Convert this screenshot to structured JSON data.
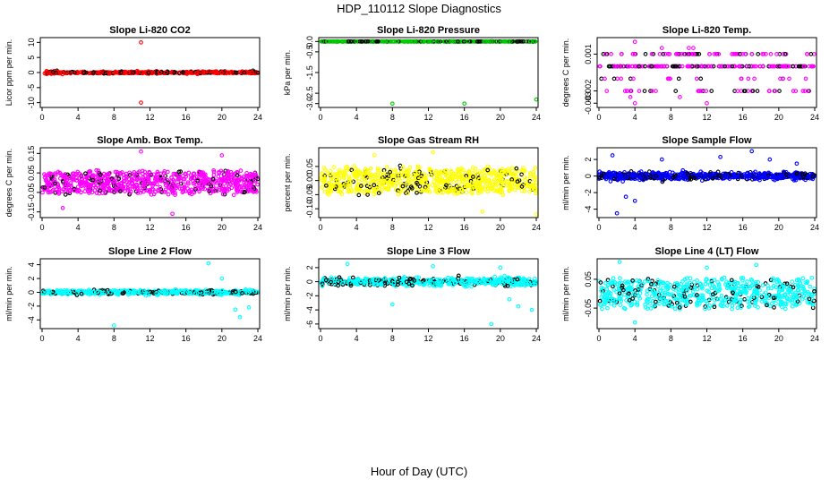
{
  "figure": {
    "title": "HDP_110112  Slope Diagnostics",
    "common_xlabel": "Hour of Day (UTC)"
  },
  "colors": {
    "red": "#ff0000",
    "green": "#00cc00",
    "magenta": "#ff00ff",
    "yellow": "#ffff00",
    "blue": "#0000ff",
    "cyan": "#00ffff",
    "black": "#000000"
  },
  "chart_data": [
    {
      "type": "scatter",
      "title": "Slope Li-820 CO2",
      "ylabel": "Licor ppm per min.",
      "xlim": [
        0,
        24
      ],
      "xticks": [
        "0",
        "4",
        "8",
        "12",
        "16",
        "20",
        "24"
      ],
      "ylim": [
        -11,
        11
      ],
      "yticks": [
        "-10",
        "-5",
        "0",
        "5",
        "10"
      ],
      "ytick_values": [
        -10,
        -5,
        0,
        5,
        10
      ],
      "color": "red",
      "seed": 11,
      "n": 480,
      "frac_black": 0.3,
      "spread": 0.35,
      "dist": "gauss",
      "outliers": [
        [
          11,
          10
        ],
        [
          11,
          -10
        ],
        [
          0.5,
          0.5
        ]
      ]
    },
    {
      "type": "scatter",
      "title": "Slope Li-820 Pressure",
      "ylabel": "kPa per min.",
      "xlim": [
        0,
        24
      ],
      "xticks": [
        "0",
        "4",
        "8",
        "12",
        "16",
        "20",
        "24"
      ],
      "ylim": [
        -3.1,
        0.1
      ],
      "yticks": [
        "0.0",
        "-0.5",
        "-1.5",
        "-2.5",
        "-3.0"
      ],
      "ytick_values": [
        0,
        -0.5,
        -1.5,
        -2.5,
        -3.0
      ],
      "color": "green",
      "seed": 23,
      "n": 400,
      "frac_black": 0.4,
      "spread": 0.005,
      "dist": "gauss",
      "outliers": [
        [
          8,
          -3.0
        ],
        [
          16,
          -3.0
        ],
        [
          24,
          -2.8
        ],
        [
          0.2,
          0
        ]
      ]
    },
    {
      "type": "scatter",
      "title": "Slope Li-820 Temp.",
      "ylabel": "degrees C per min.",
      "xlim": [
        0,
        24
      ],
      "xticks": [
        "0",
        "4",
        "8",
        "12",
        "16",
        "20",
        "24"
      ],
      "ylim": [
        -0.0032,
        0.0022
      ],
      "yticks": [
        "0.001",
        "-0.002",
        "-0.003"
      ],
      "ytick_values": [
        0.001,
        -0.002,
        -0.003
      ],
      "color": "magenta",
      "seed": 37,
      "n": 330,
      "frac_black": 0.35,
      "dist": "levels",
      "levels": [
        0.001,
        0.0,
        -0.001,
        -0.002
      ],
      "level_weights": [
        0.22,
        0.58,
        0.08,
        0.12
      ],
      "outliers": [
        [
          4,
          0.002
        ],
        [
          7,
          0.0015
        ],
        [
          10,
          0.0015
        ],
        [
          10.5,
          0.0015
        ],
        [
          4,
          -0.003
        ],
        [
          12,
          -0.003
        ],
        [
          3.5,
          -0.0025
        ],
        [
          9,
          -0.0025
        ]
      ]
    },
    {
      "type": "scatter",
      "title": "Slope Amb. Box Temp.",
      "ylabel": "degrees C per min.",
      "xlim": [
        0,
        24
      ],
      "xticks": [
        "0",
        "4",
        "8",
        "12",
        "16",
        "20",
        "24"
      ],
      "ylim": [
        -0.17,
        0.17
      ],
      "yticks": [
        "-0.15",
        "-0.05",
        "0.05",
        "0.15"
      ],
      "ytick_values": [
        -0.15,
        -0.05,
        0.05,
        0.15
      ],
      "color": "magenta",
      "seed": 41,
      "n": 780,
      "frac_black": 0.13,
      "spread": 0.055,
      "dist": "uniform",
      "outliers": [
        [
          14.5,
          -0.16
        ],
        [
          11,
          0.16
        ],
        [
          2.3,
          -0.13
        ],
        [
          20,
          0.14
        ]
      ]
    },
    {
      "type": "scatter",
      "title": "Slope Gas Stream RH",
      "ylabel": "percent per min.",
      "xlim": [
        0,
        24
      ],
      "xticks": [
        "0",
        "4",
        "8",
        "12",
        "16",
        "20",
        "24"
      ],
      "ylim": [
        -0.125,
        0.11
      ],
      "yticks": [
        "-0.10",
        "-0.05",
        "0.00",
        "0.05"
      ],
      "ytick_values": [
        -0.1,
        -0.05,
        0,
        0.05
      ],
      "color": "yellow",
      "seed": 53,
      "n": 760,
      "frac_black": 0.12,
      "spread": 0.045,
      "dist": "uniform",
      "outliers": [
        [
          12.5,
          0.1
        ],
        [
          24,
          -0.12
        ],
        [
          6,
          0.09
        ],
        [
          18,
          -0.11
        ]
      ]
    },
    {
      "type": "scatter",
      "title": "Slope Sample Flow",
      "ylabel": "ml/min per min.",
      "xlim": [
        0,
        24
      ],
      "xticks": [
        "0",
        "4",
        "8",
        "12",
        "16",
        "20",
        "24"
      ],
      "ylim": [
        -4.8,
        3.2
      ],
      "yticks": [
        "-4",
        "-2",
        "0",
        "2"
      ],
      "ytick_values": [
        -4,
        -2,
        0,
        2
      ],
      "color": "blue",
      "seed": 67,
      "n": 720,
      "frac_black": 0.22,
      "spread": 0.4,
      "dist": "gauss",
      "outliers": [
        [
          2,
          -4.5
        ],
        [
          1.5,
          2.5
        ],
        [
          7,
          2
        ],
        [
          13.5,
          2.3
        ],
        [
          17,
          3
        ],
        [
          4,
          -3
        ],
        [
          3,
          -2.5
        ],
        [
          22,
          1.5
        ],
        [
          19,
          2
        ]
      ]
    },
    {
      "type": "scatter",
      "title": "Slope Line 2 Flow",
      "ylabel": "ml/min per min.",
      "xlim": [
        0,
        24
      ],
      "xticks": [
        "0",
        "4",
        "8",
        "12",
        "16",
        "20",
        "24"
      ],
      "ylim": [
        -5,
        4.6
      ],
      "yticks": [
        "-4",
        "-2",
        "0",
        "2",
        "4"
      ],
      "ytick_values": [
        -4,
        -2,
        0,
        2,
        4
      ],
      "color": "cyan",
      "seed": 79,
      "n": 620,
      "frac_black": 0.2,
      "spread": 0.3,
      "dist": "gauss",
      "outliers": [
        [
          8,
          -4.8
        ],
        [
          18.5,
          4.2
        ],
        [
          22,
          -3.6
        ],
        [
          21.5,
          -2.5
        ],
        [
          20,
          2
        ],
        [
          23,
          -2.2
        ]
      ]
    },
    {
      "type": "scatter",
      "title": "Slope Line 3 Flow",
      "ylabel": "ml/min per min.",
      "xlim": [
        0,
        24
      ],
      "xticks": [
        "0",
        "4",
        "8",
        "12",
        "16",
        "20",
        "24"
      ],
      "ylim": [
        -6.4,
        3
      ],
      "yticks": [
        "-6",
        "-4",
        "-2",
        "0",
        "2"
      ],
      "ytick_values": [
        -6,
        -4,
        -2,
        0,
        2
      ],
      "color": "cyan",
      "seed": 97,
      "n": 620,
      "frac_black": 0.2,
      "spread": 0.55,
      "dist": "gauss",
      "outliers": [
        [
          19,
          -6
        ],
        [
          8,
          -3.2
        ],
        [
          23.5,
          -4
        ],
        [
          22,
          -3.5
        ],
        [
          12.5,
          2.2
        ],
        [
          3,
          2.5
        ],
        [
          20,
          2
        ],
        [
          21,
          -2.5
        ]
      ]
    },
    {
      "type": "scatter",
      "title": "Slope Line 4 (LT) Flow",
      "ylabel": "ml/min per min.",
      "xlim": [
        0,
        24
      ],
      "xticks": [
        "0",
        "4",
        "8",
        "12",
        "16",
        "20",
        "24"
      ],
      "ylim": [
        -0.115,
        0.115
      ],
      "yticks": [
        "-0.05",
        "0.05"
      ],
      "ytick_values": [
        -0.05,
        0.05
      ],
      "color": "cyan",
      "seed": 113,
      "n": 640,
      "frac_black": 0.16,
      "spread": 0.048,
      "dist": "uniform",
      "outliers": [
        [
          2.3,
          0.11
        ],
        [
          17.5,
          0.1
        ],
        [
          4,
          -0.1
        ],
        [
          12,
          0.09
        ]
      ]
    }
  ]
}
